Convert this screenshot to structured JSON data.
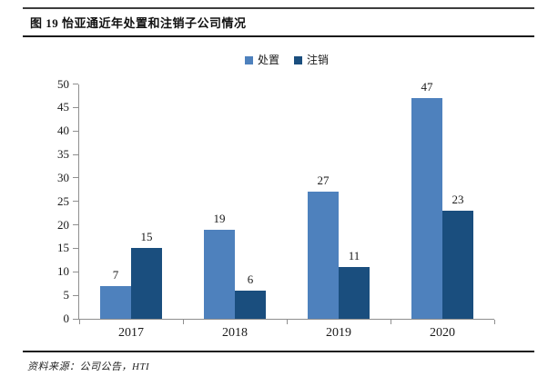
{
  "header": {
    "title": "图 19 怡亚通近年处置和注销子公司情况"
  },
  "footer": {
    "source": "资料来源：公司公告，HTI"
  },
  "colors": {
    "series_light": "#4E81BD",
    "series_dark": "#1A4E7E",
    "axis": "#8f8f8f",
    "text": "#1a1a1a"
  },
  "chart_data": {
    "type": "bar",
    "categories": [
      "2017",
      "2018",
      "2019",
      "2020"
    ],
    "series": [
      {
        "name": "处置",
        "color": "#4E81BD",
        "values": [
          7,
          19,
          27,
          47
        ]
      },
      {
        "name": "注销",
        "color": "#1A4E7E",
        "values": [
          15,
          6,
          11,
          23
        ]
      }
    ],
    "title": "",
    "xlabel": "",
    "ylabel": "",
    "ylim": [
      0,
      50
    ],
    "ytick_step": 5,
    "yticks": [
      0,
      5,
      10,
      15,
      20,
      25,
      30,
      35,
      40,
      45,
      50
    ],
    "grid": false,
    "legend_position": "top-center",
    "bar_value_labels": true
  }
}
